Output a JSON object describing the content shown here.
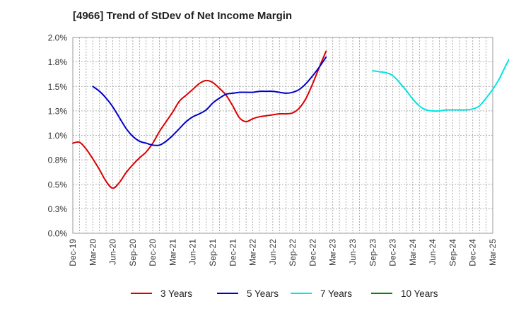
{
  "chart_data": {
    "type": "line",
    "title": "[4966]  Trend of StDev of Net Income Margin",
    "xlabel": "",
    "ylabel": "",
    "ylim": [
      0,
      2.0
    ],
    "y_ticks": [
      "0.0%",
      "0.3%",
      "0.5%",
      "0.8%",
      "1.0%",
      "1.3%",
      "1.5%",
      "1.8%",
      "2.0%"
    ],
    "x_ticks": [
      "Dec-19",
      "Mar-20",
      "Jun-20",
      "Sep-20",
      "Dec-20",
      "Mar-21",
      "Jun-21",
      "Sep-21",
      "Dec-21",
      "Mar-22",
      "Jun-22",
      "Sep-22",
      "Dec-22",
      "Mar-23",
      "Jun-23",
      "Sep-23",
      "Dec-23",
      "Mar-24",
      "Jun-24",
      "Sep-24",
      "Dec-24",
      "Mar-25"
    ],
    "grid": true,
    "legend_position": "bottom",
    "series": [
      {
        "name": "3 Years",
        "color": "#dd0000",
        "values": [
          0.92,
          0.93,
          0.86,
          0.76,
          0.65,
          0.53,
          0.46,
          0.52,
          0.62,
          0.7,
          0.77,
          0.83,
          0.92,
          1.04,
          1.14,
          1.24,
          1.35,
          1.41,
          1.47,
          1.53,
          1.56,
          1.54,
          1.48,
          1.41,
          1.3,
          1.18,
          1.14,
          1.17,
          1.19,
          1.2,
          1.21,
          1.22,
          1.22,
          1.23,
          1.28,
          1.38,
          1.53,
          1.7,
          1.86
        ],
        "x_start": 0
      },
      {
        "name": "5 Years",
        "color": "#0000cc",
        "values": [
          1.5,
          1.45,
          1.38,
          1.29,
          1.18,
          1.07,
          0.99,
          0.94,
          0.92,
          0.9,
          0.9,
          0.94,
          1.0,
          1.07,
          1.14,
          1.19,
          1.22,
          1.26,
          1.33,
          1.38,
          1.42,
          1.43,
          1.44,
          1.44,
          1.44,
          1.45,
          1.45,
          1.45,
          1.44,
          1.43,
          1.44,
          1.47,
          1.53,
          1.61,
          1.7,
          1.8
        ],
        "x_start": 1
      },
      {
        "name": "7 Years",
        "color": "#00e5e5",
        "values": [
          1.66,
          1.65,
          1.64,
          1.61,
          1.54,
          1.46,
          1.37,
          1.3,
          1.26,
          1.25,
          1.25,
          1.26,
          1.26,
          1.26,
          1.26,
          1.27,
          1.3,
          1.38,
          1.47,
          1.58,
          1.72,
          1.84
        ],
        "x_start": 15
      },
      {
        "name": "10 Years",
        "color": "#008800",
        "values": [],
        "x_start": 0
      }
    ]
  }
}
